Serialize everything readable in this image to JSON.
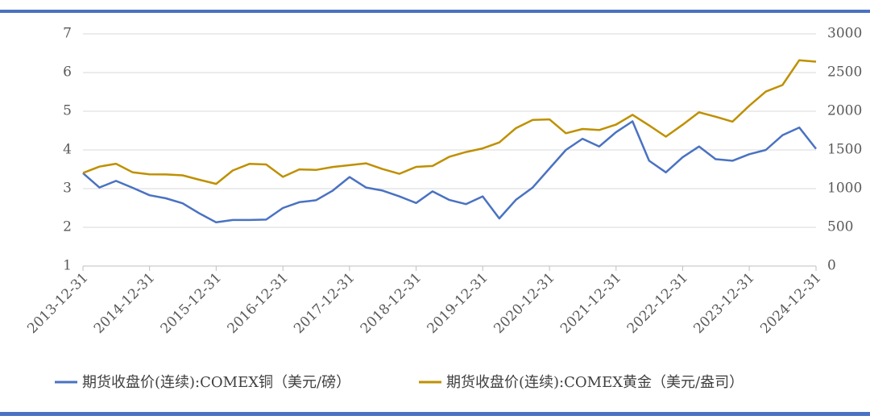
{
  "chart_data": {
    "type": "line",
    "x": [
      "2013-12-31",
      "2014-03-31",
      "2014-06-30",
      "2014-09-30",
      "2014-12-31",
      "2015-03-31",
      "2015-06-30",
      "2015-09-30",
      "2015-12-31",
      "2016-03-31",
      "2016-06-30",
      "2016-09-30",
      "2016-12-31",
      "2017-03-31",
      "2017-06-30",
      "2017-09-30",
      "2017-12-31",
      "2018-03-31",
      "2018-06-30",
      "2018-09-30",
      "2018-12-31",
      "2019-03-31",
      "2019-06-30",
      "2019-09-30",
      "2019-12-31",
      "2020-03-31",
      "2020-06-30",
      "2020-09-30",
      "2020-12-31",
      "2021-03-31",
      "2021-06-30",
      "2021-09-30",
      "2021-12-31",
      "2022-03-31",
      "2022-06-30",
      "2022-09-30",
      "2022-12-31",
      "2023-03-31",
      "2023-06-30",
      "2023-09-30",
      "2023-12-31",
      "2024-03-31",
      "2024-06-30",
      "2024-09-30",
      "2024-12-31"
    ],
    "series": [
      {
        "name": "期货收盘价(连续):COMEX铜（美元/磅）",
        "color": "#4a72c2",
        "axis": "y",
        "values": [
          3.4,
          3.03,
          3.2,
          3.02,
          2.83,
          2.75,
          2.62,
          2.36,
          2.13,
          2.19,
          2.19,
          2.2,
          2.5,
          2.65,
          2.7,
          2.95,
          3.3,
          3.03,
          2.95,
          2.8,
          2.63,
          2.93,
          2.71,
          2.6,
          2.8,
          2.23,
          2.71,
          3.03,
          3.52,
          4.0,
          4.29,
          4.09,
          4.46,
          4.74,
          3.72,
          3.42,
          3.81,
          4.09,
          3.76,
          3.72,
          3.89,
          4.0,
          4.38,
          4.58,
          4.03
        ]
      },
      {
        "name": "期货收盘价(连续):COMEX黄金（美元/盎司）",
        "color": "#bf9000",
        "axis": "y2",
        "values": [
          1202,
          1284,
          1322,
          1210,
          1184,
          1183,
          1172,
          1115,
          1061,
          1234,
          1320,
          1313,
          1152,
          1249,
          1242,
          1280,
          1303,
          1327,
          1253,
          1192,
          1281,
          1293,
          1410,
          1473,
          1520,
          1597,
          1781,
          1887,
          1895,
          1716,
          1771,
          1757,
          1828,
          1954,
          1817,
          1672,
          1826,
          1986,
          1929,
          1866,
          2071,
          2254,
          2339,
          2659,
          2641
        ]
      }
    ],
    "xlim": [
      "2013-12-31",
      "2024-12-31"
    ],
    "xticks": [
      "2013-12-31",
      "2014-12-31",
      "2015-12-31",
      "2016-12-31",
      "2017-12-31",
      "2018-12-31",
      "2019-12-31",
      "2020-12-31",
      "2021-12-31",
      "2022-12-31",
      "2023-12-31",
      "2024-12-31"
    ],
    "ylim": [
      1,
      7
    ],
    "yticks": [
      1,
      2,
      3,
      4,
      5,
      6,
      7
    ],
    "y2lim": [
      0,
      3000
    ],
    "y2ticks": [
      0,
      500,
      1000,
      1500,
      2000,
      2500,
      3000
    ],
    "grid": true
  }
}
